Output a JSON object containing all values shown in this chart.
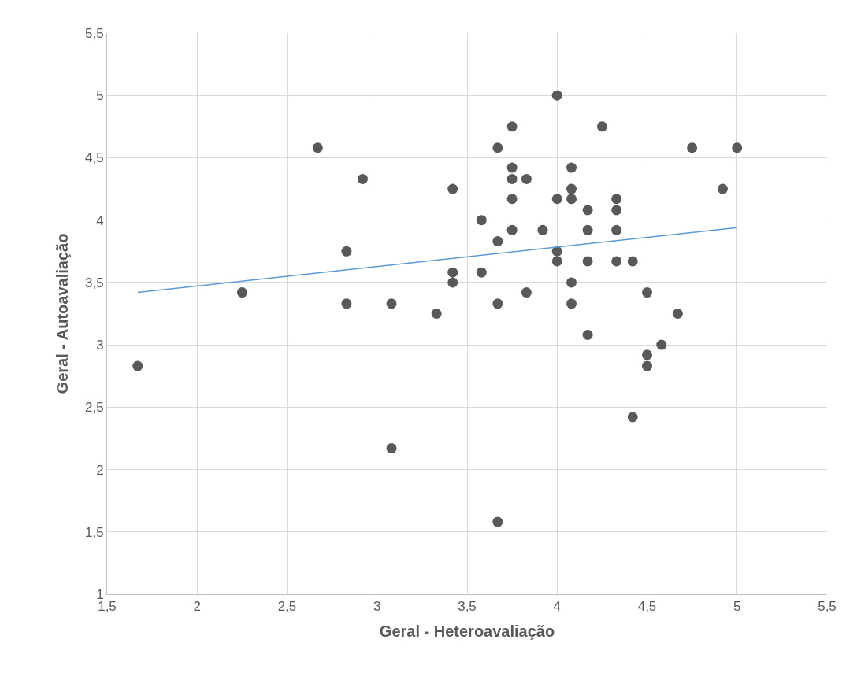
{
  "chart_data": {
    "type": "scatter",
    "xlabel": "Geral - Heteroavaliação",
    "ylabel": "Geral - Autoavaliação",
    "xlim": [
      1.5,
      5.5
    ],
    "xticks": [
      {
        "value": 1.5,
        "label": "1,5"
      },
      2,
      {
        "value": 2.5,
        "label": "2,5"
      },
      3,
      {
        "value": 3.5,
        "label": "3,5"
      },
      4,
      {
        "value": 4.5,
        "label": "4,5"
      },
      5,
      {
        "value": 5.5,
        "label": "5,5"
      }
    ],
    "ylim": [
      1,
      5.5
    ],
    "yticks": [
      1,
      {
        "value": 1.5,
        "label": "1,5"
      },
      2,
      {
        "value": 2.5,
        "label": "2,5"
      },
      3,
      {
        "value": 3.5,
        "label": "3,5"
      },
      4,
      {
        "value": 4.5,
        "label": "4,5"
      },
      5,
      {
        "value": 5.5,
        "label": "5,5"
      }
    ],
    "grid": true,
    "marker": "circle",
    "series": [
      {
        "color": "#595959",
        "x": [
          1.67,
          2.25,
          2.67,
          2.83,
          2.83,
          2.92,
          3.08,
          3.08,
          3.33,
          3.42,
          3.42,
          3.42,
          3.58,
          3.58,
          3.67,
          3.67,
          3.67,
          3.67,
          3.75,
          3.75,
          3.75,
          3.75,
          3.75,
          3.83,
          3.83,
          3.92,
          4,
          4,
          4,
          4,
          4.08,
          4.08,
          4.08,
          4.08,
          4.08,
          4.17,
          4.17,
          4.17,
          4.17,
          4.25,
          4.33,
          4.33,
          4.33,
          4.33,
          4.42,
          4.42,
          4.5,
          4.5,
          4.5,
          4.58,
          4.67,
          4.75,
          4.92,
          5
        ],
        "values": [
          2.83,
          3.42,
          4.58,
          3.75,
          3.33,
          4.33,
          3.33,
          2.17,
          3.25,
          4.25,
          3.58,
          3.5,
          4,
          3.58,
          4.58,
          3.83,
          3.33,
          1.58,
          4.75,
          4.42,
          4.33,
          4.17,
          3.92,
          4.33,
          3.42,
          3.92,
          5,
          4.17,
          3.75,
          3.67,
          4.42,
          4.25,
          4.17,
          3.5,
          3.33,
          4.08,
          3.92,
          3.67,
          3.08,
          4.75,
          4.17,
          4.08,
          3.92,
          3.67,
          3.67,
          2.42,
          3.42,
          2.92,
          2.83,
          3,
          3.25,
          4.58,
          4.25,
          4.58
        ]
      },
      {
        "type": "line",
        "color": "#5b9bd5",
        "marker": "none",
        "x": [
          1.67,
          5
        ],
        "values": [
          3.42,
          3.94
        ]
      }
    ]
  }
}
